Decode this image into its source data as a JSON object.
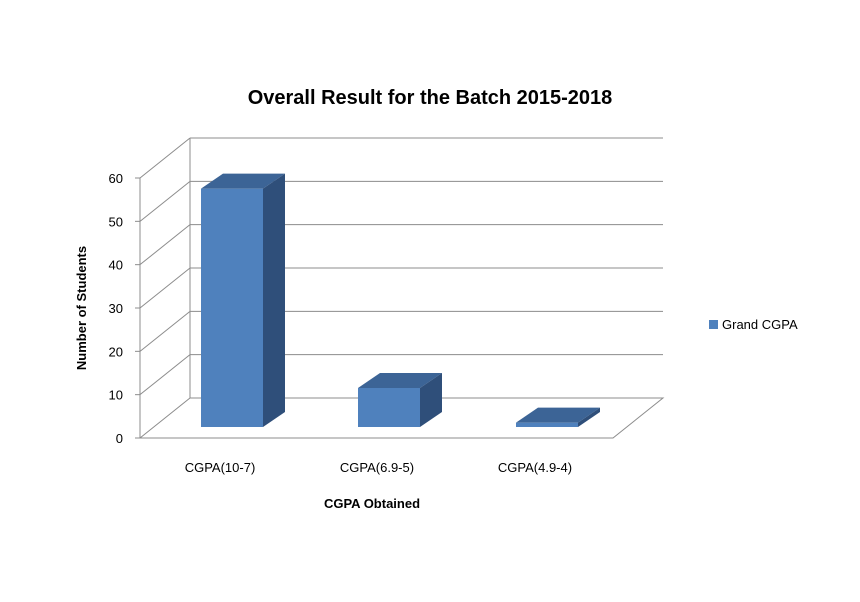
{
  "chart_data": {
    "type": "bar",
    "title": "Overall Result for the Batch 2015-2018",
    "xlabel": "CGPA Obtained",
    "ylabel": "Number  of Students",
    "categories": [
      "CGPA(10-7)",
      "CGPA(6.9-5)",
      "CGPA(4.9-4)"
    ],
    "series": [
      {
        "name": "Grand CGPA",
        "values": [
          55,
          9,
          1
        ]
      }
    ],
    "ylim": [
      0,
      60
    ],
    "yticks": [
      "0",
      "10",
      "20",
      "30",
      "40",
      "50",
      "60"
    ],
    "grid": true,
    "three_d": true,
    "legend_position": "right",
    "colors": {
      "bar_front": "#4F81BD",
      "bar_top": "#3C6496",
      "bar_side": "#2F4F7A",
      "grid": "#8C8C8C"
    }
  }
}
